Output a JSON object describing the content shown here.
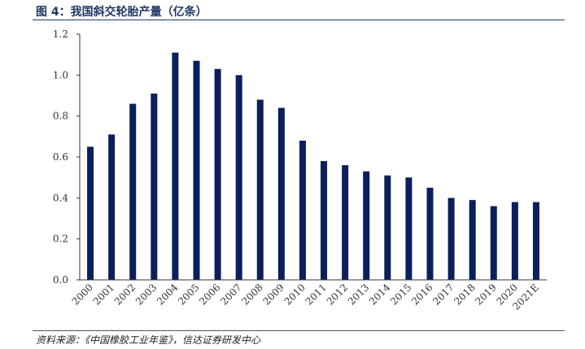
{
  "figure": {
    "title": "图 4：我国斜交轮胎产量（亿条）",
    "source": "资料来源：《中国橡胶工业年鉴》，信达证券研发中心"
  },
  "colors": {
    "bar": "#0a1f5c",
    "title": "#1f3864"
  },
  "chart_data": {
    "type": "bar",
    "title": "我国斜交轮胎产量（亿条）",
    "xlabel": "",
    "ylabel": "",
    "categories": [
      "2000",
      "2001",
      "2002",
      "2003",
      "2004",
      "2005",
      "2006",
      "2007",
      "2008",
      "2009",
      "2010",
      "2011",
      "2012",
      "2013",
      "2014",
      "2015",
      "2016",
      "2017",
      "2018",
      "2019",
      "2020",
      "2021E"
    ],
    "values": [
      0.65,
      0.71,
      0.86,
      0.91,
      1.11,
      1.07,
      1.03,
      1.0,
      0.88,
      0.84,
      0.68,
      0.58,
      0.56,
      0.53,
      0.51,
      0.5,
      0.45,
      0.4,
      0.39,
      0.36,
      0.38,
      0.38
    ],
    "ylim": [
      0,
      1.2
    ],
    "yticks": [
      "0.0",
      "0.2",
      "0.4",
      "0.6",
      "0.8",
      "1.0",
      "1.2"
    ],
    "grid": false,
    "legend": "none"
  }
}
